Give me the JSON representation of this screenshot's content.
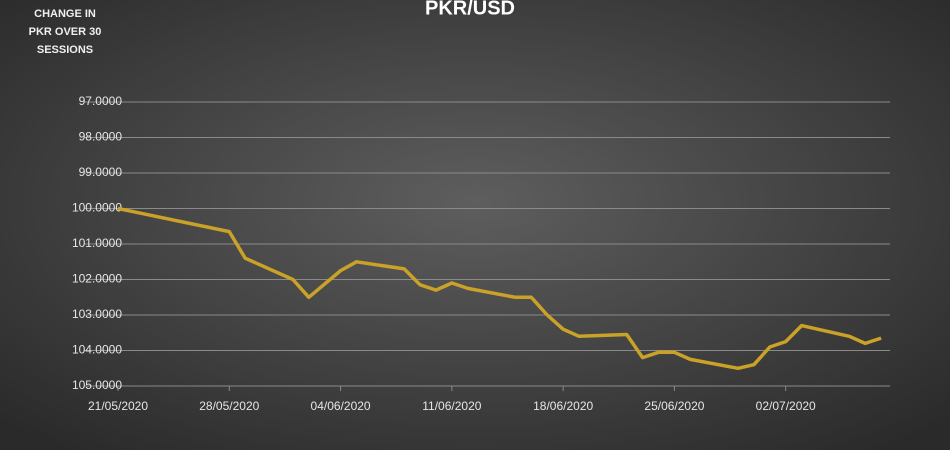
{
  "chart_data": {
    "type": "line",
    "title": "PKR/USD",
    "y_axis_title": [
      "CHANGE IN",
      "PKR OVER 30",
      "SESSIONS"
    ],
    "x": [
      "21/05/2020",
      "28/05/2020",
      "29/05/2020",
      "01/06/2020",
      "02/06/2020",
      "04/06/2020",
      "05/06/2020",
      "08/06/2020",
      "09/06/2020",
      "10/06/2020",
      "11/06/2020",
      "12/06/2020",
      "15/06/2020",
      "16/06/2020",
      "17/06/2020",
      "18/06/2020",
      "19/06/2020",
      "22/06/2020",
      "23/06/2020",
      "24/06/2020",
      "25/06/2020",
      "26/06/2020",
      "29/06/2020",
      "30/06/2020",
      "01/07/2020",
      "02/07/2020",
      "03/07/2020",
      "06/07/2020",
      "07/07/2020",
      "08/07/2020"
    ],
    "series": [
      {
        "name": "PKR/USD",
        "color": "#c9a227",
        "values": [
          100.0,
          100.65,
          101.4,
          102.0,
          102.5,
          101.75,
          101.5,
          101.7,
          102.15,
          102.3,
          102.1,
          102.25,
          102.5,
          102.5,
          103.0,
          103.4,
          103.6,
          103.55,
          104.2,
          104.05,
          104.05,
          104.25,
          104.5,
          104.4,
          103.9,
          103.75,
          103.3,
          103.6,
          103.8,
          103.65
        ]
      }
    ],
    "xlim": [
      "21/05/2020",
      "09/07/2020"
    ],
    "xticks": [
      "21/05/2020",
      "28/05/2020",
      "04/06/2020",
      "11/06/2020",
      "18/06/2020",
      "25/06/2020",
      "02/07/2020"
    ],
    "ylim": [
      97,
      105
    ],
    "y_reversed": true,
    "yticks": [
      {
        "value": 97,
        "label": "97.0000"
      },
      {
        "value": 98,
        "label": "98.0000"
      },
      {
        "value": 99,
        "label": "99.0000"
      },
      {
        "value": 100,
        "label": "100.0000"
      },
      {
        "value": 101,
        "label": "101.0000"
      },
      {
        "value": 102,
        "label": "102.0000"
      },
      {
        "value": 103,
        "label": "103.0000"
      },
      {
        "value": 104,
        "label": "104.0000"
      },
      {
        "value": 105,
        "label": "105.0000"
      }
    ],
    "grid": true
  }
}
